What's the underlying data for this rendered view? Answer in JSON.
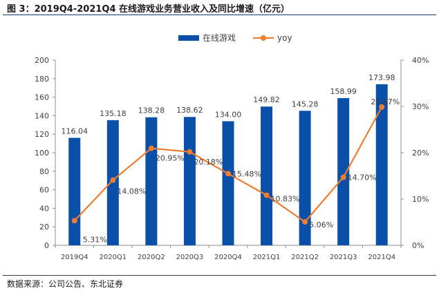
{
  "figure": {
    "title": "图 3：2019Q4-2021Q4 在线游戏业务营业收入及同比增速（亿元）",
    "source": "数据来源：公司公告、东北证券"
  },
  "colors": {
    "bar": "#0a50a8",
    "line": "#ed7d31",
    "axis": "#8c8c8c",
    "text": "#404040"
  },
  "chart_data": {
    "type": "bar",
    "categories": [
      "2019Q4",
      "2020Q1",
      "2020Q2",
      "2020Q3",
      "2020Q4",
      "2021Q1",
      "2021Q2",
      "2021Q3",
      "2021Q4"
    ],
    "series": [
      {
        "name": "在线游戏",
        "type": "bar",
        "axis": "left",
        "values": [
          116.04,
          135.18,
          138.28,
          138.62,
          134.0,
          149.82,
          145.28,
          158.99,
          173.98
        ],
        "labels": [
          "116.04",
          "135.18",
          "138.28",
          "138.62",
          "134.00",
          "149.82",
          "145.28",
          "158.99",
          "173.98"
        ]
      },
      {
        "name": "yoy",
        "type": "line",
        "axis": "right",
        "values": [
          5.31,
          14.08,
          20.95,
          20.18,
          15.48,
          10.83,
          5.06,
          14.7,
          29.87
        ],
        "labels": [
          "5.31%",
          "14.08%",
          "20.95%",
          "20.18%",
          "15.48%",
          "10.83%",
          "5.06%",
          "14.70%",
          "29.87%"
        ]
      }
    ],
    "y_left": {
      "min": 0,
      "max": 200,
      "step": 20,
      "ticks": [
        "0",
        "20",
        "40",
        "60",
        "80",
        "100",
        "120",
        "140",
        "160",
        "180",
        "200"
      ]
    },
    "y_right": {
      "min": 0,
      "max": 40,
      "step": 10,
      "ticks": [
        "0%",
        "10%",
        "20%",
        "30%",
        "40%"
      ]
    },
    "legend": {
      "placement": "top-center"
    },
    "grid": false
  }
}
